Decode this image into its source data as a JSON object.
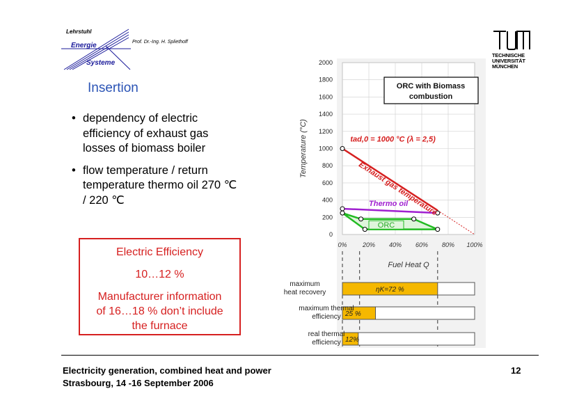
{
  "header": {
    "logo": {
      "line1": "Lehrstuhl",
      "line2": "Energie",
      "line3": "Systeme"
    },
    "professor": "Prof. Dr.-Ing. H. Spliethoff",
    "university": {
      "line1": "TECHNISCHE",
      "line2": "UNIVERSITÄT",
      "line3": "MÜNCHEN"
    }
  },
  "slide": {
    "title": "Insertion",
    "bullet_symbol": "•",
    "bullets": [
      [
        "dependency of electric",
        "efficiency of exhaust gas",
        "losses of biomass boiler"
      ],
      [
        "flow temperature / return",
        "temperature thermo oil 270 ℃",
        "/ 220 ℃"
      ]
    ],
    "efficiency_box": {
      "heading": "Electric Efficiency",
      "value": "10…12 %",
      "note": [
        "Manufacturer information",
        "of 16…18 % don’t include",
        "the furnace"
      ]
    }
  },
  "chart_data": [
    {
      "type": "line",
      "title": "ORC with Biomass combustion",
      "xlabel": "Fuel Heat Q",
      "ylabel": "Temperature (°C)",
      "xlim": [
        0,
        100
      ],
      "ylim": [
        0,
        2000
      ],
      "x_ticks": [
        0,
        20,
        40,
        60,
        80,
        100
      ],
      "x_tick_labels": [
        "0%",
        "20%",
        "40%",
        "60%",
        "80%",
        "100%"
      ],
      "y_ticks": [
        0,
        200,
        400,
        600,
        800,
        1000,
        1200,
        1400,
        1600,
        1800,
        2000
      ],
      "y_tick_labels": [
        "0",
        "200",
        "400",
        "600",
        "800",
        "1000",
        "1200",
        "1400",
        "1600",
        "1800",
        "2000"
      ],
      "grid": true,
      "annotation": "tad,0 = 1000 °C (λ = 2,5)",
      "series": [
        {
          "name": "Exhaust gas temperature",
          "color": "#d62020",
          "points": [
            [
              0,
              1000
            ],
            [
              100,
              0
            ]
          ]
        },
        {
          "name": "Thermo oil",
          "color": "#a020d0",
          "points": [
            [
              0,
              300
            ],
            [
              72,
              250
            ]
          ]
        },
        {
          "name": "ORC",
          "color": "#22bb22",
          "points": [
            [
              0,
              250
            ],
            [
              14,
              180
            ],
            [
              54,
              180
            ],
            [
              72,
              60
            ],
            [
              17,
              60
            ],
            [
              0,
              250
            ]
          ]
        }
      ]
    },
    {
      "type": "bar",
      "orientation": "horizontal",
      "categories": [
        "maximum heat recovery",
        "maximum thermal efficiency",
        "real thermal efficiency"
      ],
      "values": [
        72,
        25,
        12
      ],
      "value_labels": [
        "ηK=72 %",
        "25 %",
        "12%"
      ],
      "xlim": [
        0,
        100
      ],
      "colors": {
        "fill": "#f5b800",
        "track": "#ffffff",
        "border": "#555555"
      }
    }
  ],
  "footer": {
    "line1": "Electricity generation, combined heat and power",
    "line2": "Strasbourg, 14 -16 September 2006",
    "page": "12"
  }
}
